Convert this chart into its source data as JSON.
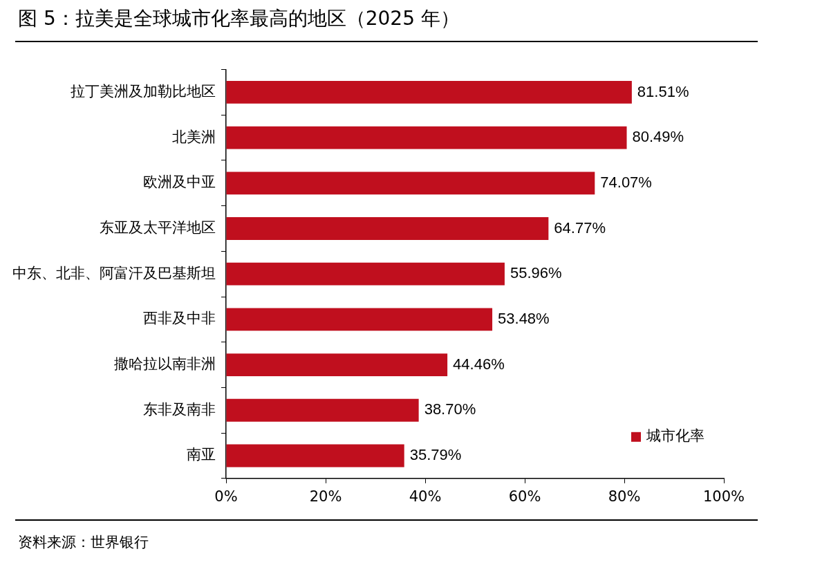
{
  "chart_data": {
    "type": "bar",
    "orientation": "horizontal",
    "title": "图 5：拉美是全球城市化率最高的地区（2025 年）",
    "categories": [
      "拉丁美洲及加勒比地区",
      "北美洲",
      "欧洲及中亚",
      "东亚及太平洋地区",
      "中东、北非、阿富汗及巴基斯坦",
      "西非及中非",
      "撒哈拉以南非洲",
      "东非及南非",
      "南亚"
    ],
    "series": [
      {
        "name": "城市化率",
        "color": "#c00f1e",
        "values": [
          81.51,
          80.49,
          74.07,
          64.77,
          55.96,
          53.48,
          44.46,
          38.7,
          35.79
        ],
        "value_labels": [
          "81.51%",
          "80.49%",
          "74.07%",
          "64.77%",
          "55.96%",
          "53.48%",
          "44.46%",
          "38.70%",
          "35.79%"
        ]
      }
    ],
    "xlim": [
      0,
      100
    ],
    "xticks": [
      {
        "value": 0,
        "label": "0%"
      },
      {
        "value": 20,
        "label": "20%"
      },
      {
        "value": 40,
        "label": "40%"
      },
      {
        "value": 60,
        "label": "60%"
      },
      {
        "value": 80,
        "label": "80%"
      },
      {
        "value": 100,
        "label": "100%"
      }
    ],
    "grid": false,
    "legend": "bottom right",
    "annotations": [
      "资料来源：世界银行"
    ]
  }
}
